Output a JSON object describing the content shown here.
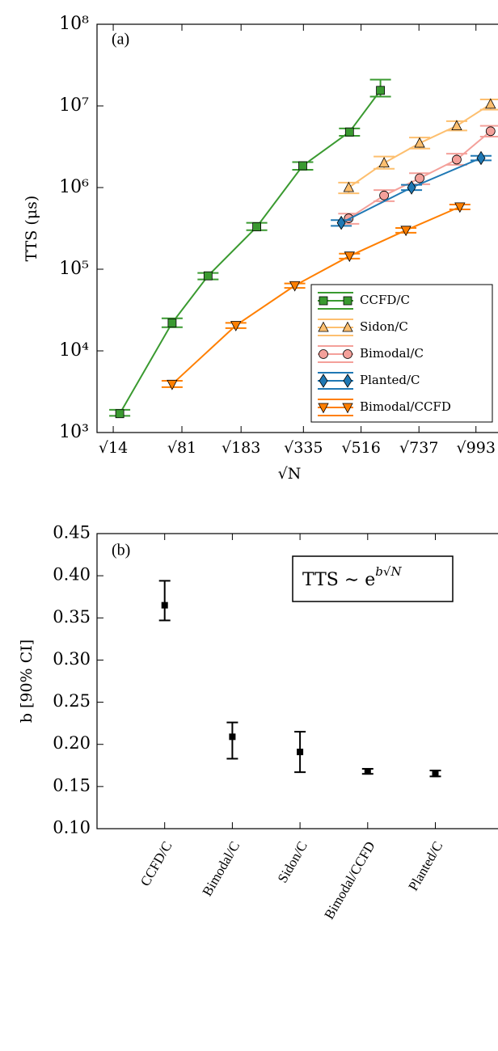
{
  "chart_data": [
    {
      "type": "line",
      "panel_label": "(a)",
      "ylabel": "TTS (μs)",
      "xlabel": "√N",
      "log_y": true,
      "legend": "lower right",
      "xlim": [
        2.5,
        33.2
      ],
      "ylim": [
        1000,
        100000000
      ],
      "xticks": [
        {
          "value": 3.742,
          "label": "√14"
        },
        {
          "value": 9,
          "label": "√81"
        },
        {
          "value": 13.528,
          "label": "√183"
        },
        {
          "value": 18.303,
          "label": "√335"
        },
        {
          "value": 22.716,
          "label": "√516"
        },
        {
          "value": 27.148,
          "label": "√737"
        },
        {
          "value": 31.512,
          "label": "√993"
        }
      ],
      "yticks": [
        {
          "value": 1000,
          "label": "10³"
        },
        {
          "value": 10000,
          "label": "10⁴"
        },
        {
          "value": 100000,
          "label": "10⁵"
        },
        {
          "value": 1000000,
          "label": "10⁶"
        },
        {
          "value": 10000000,
          "label": "10⁷"
        },
        {
          "value": 100000000,
          "label": "10⁸"
        }
      ],
      "series": [
        {
          "name": "CCFD/C",
          "color": "#3a9a30",
          "marker": "square",
          "x": [
            4.24,
            8.25,
            11.0,
            14.73,
            18.25,
            21.83,
            24.2
          ],
          "values": [
            1700,
            22000,
            83000,
            330000,
            1850000,
            4800000,
            15500000
          ],
          "lower": [
            1600,
            19500,
            75000,
            300000,
            1650000,
            4300000,
            13000000
          ],
          "upper": [
            1900,
            25000,
            90000,
            370000,
            2050000,
            5300000,
            21000000
          ]
        },
        {
          "name": "Sidon/C",
          "color": "#fdbf6f",
          "marker": "triangle-up",
          "x": [
            21.77,
            24.48,
            27.2,
            30.04,
            32.63
          ],
          "values": [
            1000000,
            2000000,
            3500000,
            5700000,
            10500000
          ],
          "lower": [
            850000,
            1700000,
            3000000,
            5000000,
            9000000
          ],
          "upper": [
            1150000,
            2400000,
            4100000,
            6500000,
            12000000
          ]
        },
        {
          "name": "Bimodal/C",
          "color": "#f4a09a",
          "marker": "circle",
          "x": [
            21.77,
            24.48,
            27.2,
            30.04,
            32.63
          ],
          "values": [
            420000,
            800000,
            1300000,
            2200000,
            4900000
          ],
          "lower": [
            360000,
            680000,
            1100000,
            1900000,
            4200000
          ],
          "upper": [
            480000,
            930000,
            1500000,
            2600000,
            5700000
          ]
        },
        {
          "name": "Planted/C",
          "color": "#1f78b4",
          "marker": "diamond",
          "x": [
            21.2,
            26.58,
            31.9
          ],
          "values": [
            370000,
            1000000,
            2300000
          ],
          "lower": [
            340000,
            930000,
            2150000
          ],
          "upper": [
            400000,
            1080000,
            2450000
          ]
        },
        {
          "name": "Bimodal/CCFD",
          "color": "#ff7f00",
          "marker": "triangle-down",
          "x": [
            8.25,
            13.13,
            17.64,
            21.83,
            26.15,
            30.28
          ],
          "values": [
            3900,
            20500,
            63000,
            145000,
            300000,
            580000
          ],
          "lower": [
            3600,
            19000,
            59000,
            135000,
            280000,
            540000
          ],
          "upper": [
            4300,
            22000,
            67000,
            155000,
            320000,
            620000
          ]
        }
      ]
    },
    {
      "type": "errorbar",
      "panel_label": "(b)",
      "ylabel": "b [90% CI]",
      "annotation": {
        "base": "TTS ∼ e",
        "exponent": "b√N"
      },
      "categories": [
        "CCFD/C",
        "Bimodal/C",
        "Sidon/C",
        "Bimodal/CCFD",
        "Planted/C"
      ],
      "values": [
        0.365,
        0.209,
        0.191,
        0.168,
        0.165
      ],
      "lower": [
        0.347,
        0.183,
        0.167,
        0.165,
        0.162
      ],
      "upper": [
        0.394,
        0.226,
        0.215,
        0.171,
        0.169
      ],
      "color": "#000000",
      "ylim": [
        0.1,
        0.45
      ],
      "yticks": [
        {
          "value": 0.1,
          "label": "0.10"
        },
        0.15,
        {
          "value": 0.2,
          "label": "0.20"
        },
        0.25,
        {
          "value": 0.3,
          "label": "0.30"
        },
        0.35,
        {
          "value": 0.4,
          "label": "0.40"
        },
        0.45
      ]
    }
  ]
}
